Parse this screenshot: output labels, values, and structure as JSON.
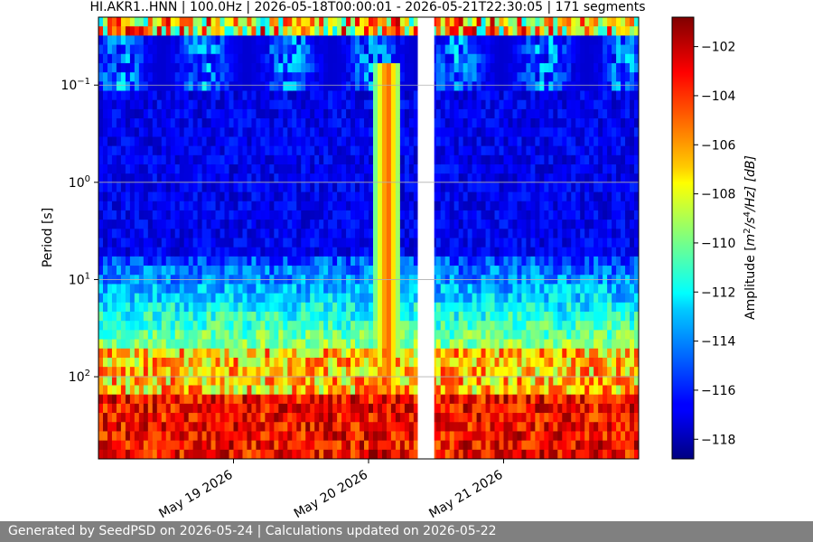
{
  "chart_data": {
    "type": "heatmap",
    "title": "HI.AKR1..HNN | 100.0Hz | 2026-05-18T00:00:01 - 2026-05-21T22:30:05 | 171 segments",
    "ylabel": "Period [s]",
    "xlabel": "",
    "y_scale": "log",
    "y_axis_inverted": true,
    "ylim": [
      0.02,
      700
    ],
    "y_ticks": [
      {
        "value": 0.1,
        "base": "10",
        "exp": "−1"
      },
      {
        "value": 1,
        "base": "10",
        "exp": "0"
      },
      {
        "value": 10,
        "base": "10",
        "exp": "1"
      },
      {
        "value": 100,
        "base": "10",
        "exp": "2"
      }
    ],
    "grid": true,
    "xlim": [
      "2026-05-18T00:00:00",
      "2026-05-22T00:00:00"
    ],
    "x_ticks": [
      {
        "value": "2026-05-19",
        "label": "May 19 2026"
      },
      {
        "value": "2026-05-20",
        "label": "May 20 2026"
      },
      {
        "value": "2026-05-21",
        "label": "May 21 2026"
      }
    ],
    "data_gaps": [
      [
        "2026-05-20T08:45:00",
        "2026-05-20T11:40:00"
      ]
    ],
    "colorbar": {
      "label": "Amplitude [m²/s⁴/Hz] [dB]",
      "label_parts": {
        "prefix": "Amplitude [",
        "m": "m",
        "two": "2",
        "slash1": "/s",
        "four": "4",
        "slash2": "/Hz] [dB]"
      },
      "range": [
        -118.8,
        -100.8
      ],
      "ticks": [
        -102,
        -104,
        -106,
        -108,
        -110,
        -112,
        -114,
        -116,
        -118
      ],
      "tick_labels": [
        "−102",
        "−104",
        "−106",
        "−108",
        "−110",
        "−112",
        "−114",
        "−116",
        "−118"
      ],
      "colormap": "jet"
    }
  },
  "footer": {
    "text": "Generated by SeedPSD on 2026-05-24 | Calculations updated on 2026-05-22"
  }
}
